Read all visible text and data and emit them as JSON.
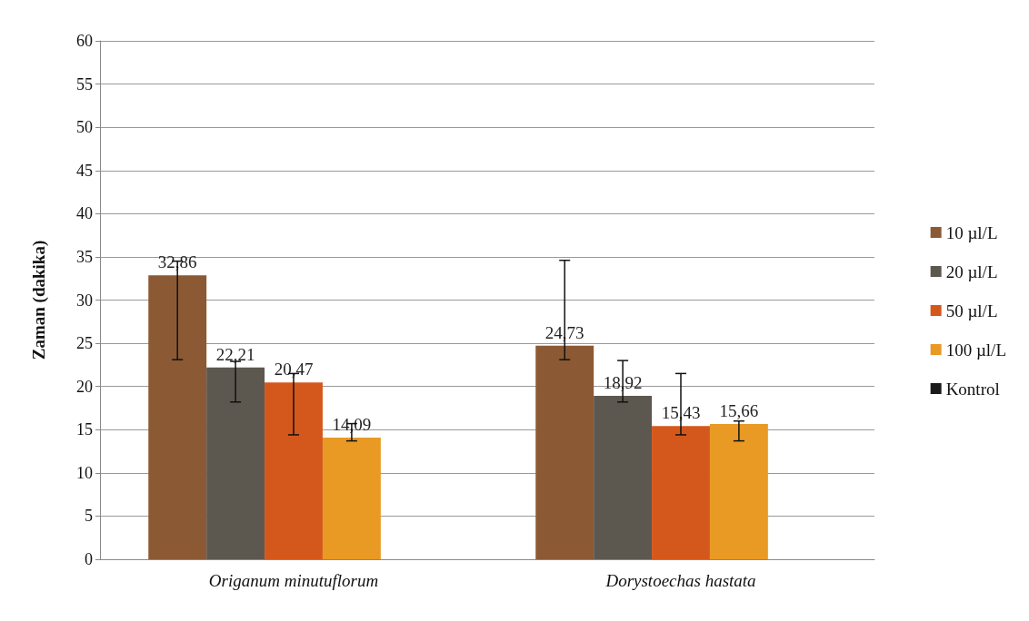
{
  "chart_data": {
    "type": "bar",
    "ylabel": "Zaman (dakika)",
    "categories": [
      "Origanum minutuflorum",
      "Dorystoechas hastata"
    ],
    "series": [
      {
        "name": "10 µl/L",
        "color": "#8b5a34",
        "values": [
          32.86,
          24.73
        ],
        "value_labels": [
          "32,86",
          "24,73"
        ],
        "errors": [
          [
            23.1,
            34.5
          ],
          [
            23.1,
            34.6
          ]
        ]
      },
      {
        "name": "20 µl/L",
        "color": "#5c5850",
        "values": [
          22.21,
          18.92
        ],
        "value_labels": [
          "22,21",
          "18,92"
        ],
        "errors": [
          [
            18.2,
            22.9
          ],
          [
            18.2,
            23.0
          ]
        ]
      },
      {
        "name": "50 µl/L",
        "color": "#d4581c",
        "values": [
          20.47,
          15.43
        ],
        "value_labels": [
          "20,47",
          "15,43"
        ],
        "errors": [
          [
            14.4,
            21.5
          ],
          [
            14.4,
            21.5
          ]
        ]
      },
      {
        "name": "100 µl/L",
        "color": "#e89a24",
        "values": [
          14.09,
          15.66
        ],
        "value_labels": [
          "14,09",
          "15,66"
        ],
        "errors": [
          [
            13.7,
            15.7
          ],
          [
            13.7,
            16.0
          ]
        ]
      },
      {
        "name": "Kontrol",
        "color": "#1a1a1a",
        "values": [
          null,
          null
        ]
      }
    ],
    "ylim": [
      0,
      60
    ],
    "yticks": [
      0,
      5,
      10,
      15,
      20,
      25,
      30,
      35,
      40,
      45,
      50,
      55,
      60
    ],
    "grid": "y",
    "legend": "right"
  }
}
